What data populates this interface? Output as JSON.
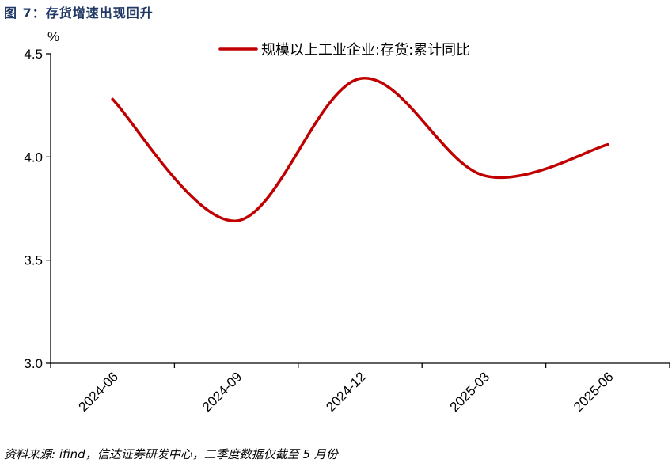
{
  "figure": {
    "title": "图 7：存货增速出现回升",
    "source": "资料来源: ifind，信达证券研发中心，二季度数据仅截至 5 月份"
  },
  "chart_data": {
    "type": "line",
    "title": "",
    "xlabel": "",
    "ylabel": "%",
    "categories": [
      "2024-06",
      "2024-09",
      "2024-12",
      "2025-03",
      "2025-06"
    ],
    "ylim": [
      3.0,
      4.5
    ],
    "yticks": [
      "3.0",
      "3.5",
      "4.0",
      "4.5"
    ],
    "grid": false,
    "legend_position": "top-center",
    "series": [
      {
        "name": "规模以上工业企业:存货:累计同比",
        "color": "#c00000",
        "x": [
          "2024-06",
          "2024-09",
          "2024-12",
          "2025-03",
          "2025-06"
        ],
        "values": [
          4.28,
          3.69,
          4.38,
          3.91,
          4.06
        ]
      }
    ]
  }
}
